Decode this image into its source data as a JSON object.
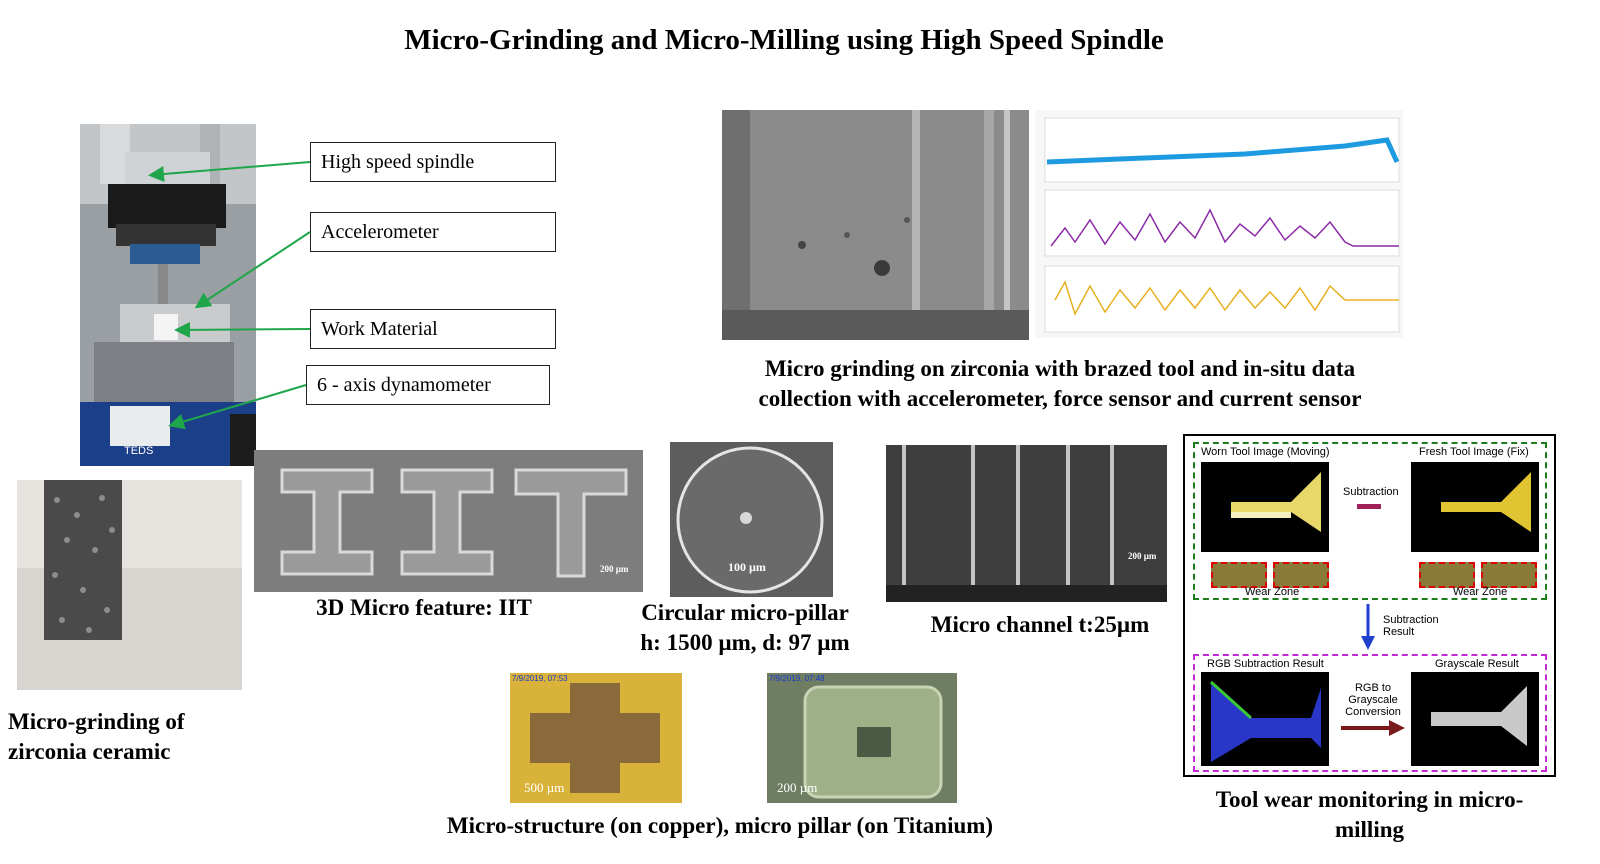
{
  "title": "Micro-Grinding and Micro-Milling using High Speed Spindle",
  "setup_labels": [
    "High speed spindle",
    "Accelerometer",
    "Work Material",
    "6 - axis dynamometer"
  ],
  "captions": {
    "grinding_zirconia_ceramic": "Micro-grinding of zirconia ceramic",
    "grinding_zirconia_line1": "Micro grinding on zirconia with brazed tool and in-situ data",
    "grinding_zirconia_line2": "collection with accelerometer, force sensor and current sensor",
    "iit": "3D Micro feature: IIT",
    "pillar_line1": "Circular micro-pillar",
    "pillar_line2": "h: 1500 µm, d: 97 µm",
    "channel": "Micro channel t:25µm",
    "microstructure": "Micro-structure (on copper), micro pillar (on Titanium)",
    "tool_wear": "Tool wear monitoring in micro-milling"
  },
  "scale_labels": {
    "iit": "200 µm",
    "pillar": "100 µm",
    "channel": "200 µm",
    "copper": "500 µm",
    "titanium": "200 µm"
  },
  "timestamps": {
    "copper": "7/9/2019, 07:53",
    "titanium": "7/9/2019, 07:48"
  },
  "tool_wear_diagram": {
    "worn_label": "Worn Tool Image (Moving)",
    "fresh_label": "Fresh Tool Image (Fix)",
    "subtraction": "Subtraction",
    "subtraction_result": "Subtraction Result",
    "wear_zone": "Wear Zone",
    "rgb_result": "RGB Subtraction Result",
    "grayscale_result": "Grayscale Result",
    "conversion": "RGB to Grayscale Conversion"
  },
  "colors": {
    "arrow_green": "#1fa64a",
    "signal_blue": "#1e9be0",
    "signal_purple": "#8a2aa6",
    "signal_yellow": "#e6b020",
    "dashed_green": "#1d7d1d",
    "dashed_magenta": "#c02ad0"
  }
}
